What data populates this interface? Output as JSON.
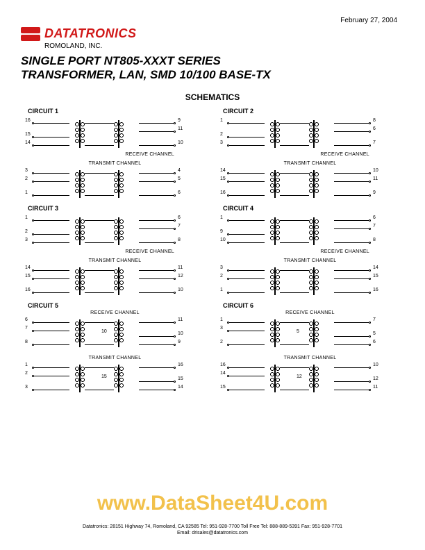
{
  "date": "February 27, 2004",
  "company": {
    "logo_text": "DATATRONICS",
    "sub": "ROMOLAND, INC.",
    "logo_color": "#d11919"
  },
  "title_line1": "SINGLE PORT NT805-XXXT SERIES",
  "title_line2": "TRANSFORMER, LAN, SMD 10/100 BASE-TX",
  "section_heading": "SCHEMATICS",
  "channel_labels": {
    "receive": "RECEIVE CHANNEL",
    "transmit": "TRANSMIT CHANNEL"
  },
  "circuits": [
    {
      "label": "CIRCUIT 1",
      "blocks": [
        {
          "channel": "receive",
          "left_pins": [
            "16",
            "",
            "15",
            "14"
          ],
          "right_pins": [
            "9",
            "11",
            "",
            "10"
          ]
        },
        {
          "channel": "transmit",
          "left_pins": [
            "3",
            "2",
            "",
            "1"
          ],
          "right_pins": [
            "4",
            "5",
            "",
            "6"
          ]
        }
      ]
    },
    {
      "label": "CIRCUIT 2",
      "blocks": [
        {
          "channel": "receive",
          "left_pins": [
            "1",
            "",
            "2",
            "3"
          ],
          "right_pins": [
            "8",
            "6",
            "",
            "7"
          ]
        },
        {
          "channel": "transmit",
          "left_pins": [
            "14",
            "15",
            "",
            "16"
          ],
          "right_pins": [
            "10",
            "11",
            "",
            "9"
          ]
        }
      ]
    },
    {
      "label": "CIRCUIT 3",
      "blocks": [
        {
          "channel": "receive",
          "left_pins": [
            "1",
            "",
            "2",
            "3"
          ],
          "right_pins": [
            "6",
            "7",
            "",
            "8"
          ]
        },
        {
          "channel": "transmit",
          "left_pins": [
            "14",
            "15",
            "",
            "16"
          ],
          "right_pins": [
            "11",
            "12",
            "",
            "10"
          ]
        }
      ]
    },
    {
      "label": "CIRCUIT 4",
      "blocks": [
        {
          "channel": "receive",
          "left_pins": [
            "1",
            "",
            "9",
            "10"
          ],
          "right_pins": [
            "6",
            "7",
            "",
            "8"
          ]
        },
        {
          "channel": "transmit",
          "left_pins": [
            "3",
            "2",
            "",
            "1"
          ],
          "right_pins": [
            "14",
            "15",
            "",
            "16"
          ]
        }
      ]
    },
    {
      "label": "CIRCUIT 5",
      "blocks": [
        {
          "channel": "receive",
          "left_pins": [
            "6",
            "7",
            "",
            "8"
          ],
          "right_pins": [
            "11",
            "",
            "10",
            "9"
          ],
          "mid": "10"
        },
        {
          "channel": "transmit",
          "left_pins": [
            "1",
            "2",
            "",
            "3"
          ],
          "right_pins": [
            "16",
            "",
            "15",
            "14"
          ],
          "mid": "15"
        }
      ]
    },
    {
      "label": "CIRCUIT 6",
      "blocks": [
        {
          "channel": "receive",
          "left_pins": [
            "1",
            "3",
            "",
            "2"
          ],
          "right_pins": [
            "7",
            "",
            "5",
            "6"
          ],
          "mid": "5"
        },
        {
          "channel": "transmit",
          "left_pins": [
            "16",
            "14",
            "",
            "15"
          ],
          "right_pins": [
            "10",
            "",
            "12",
            "11"
          ],
          "mid": "12"
        }
      ]
    }
  ],
  "watermark": "www.DataSheet4U.com",
  "footer_line1": "Datatronics:   28151 Highway 74, Romoland, CA 92585   Tel: 951-928-7700   Toll Free Tel: 888-889-5391   Fax: 951-928-7701",
  "footer_line2": "Email: drisales@datatronics.com",
  "colors": {
    "text": "#000000",
    "background": "#ffffff",
    "watermark": "#f2c14b"
  }
}
